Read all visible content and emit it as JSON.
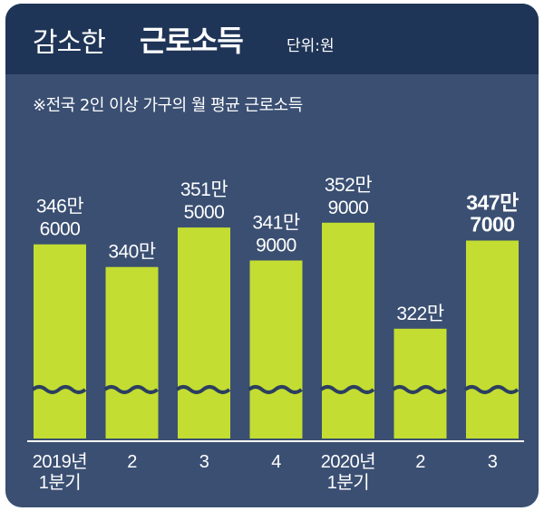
{
  "header": {
    "title_light": "감소한",
    "title_bold": "근로소득",
    "unit": "단위:원"
  },
  "subtitle": "※전국 2인 이상 가구의 월 평균 근로소득",
  "colors": {
    "header_bg": "#1f3557",
    "panel_bg": "#3a4f72",
    "bar": "#c3dd32",
    "text": "#ffffff"
  },
  "chart_data": {
    "type": "bar",
    "title": "감소한 근로소득",
    "subtitle": "※전국 2인 이상 가구의 월 평균 근로소득",
    "unit": "단위:원",
    "axis_break": true,
    "categories": [
      [
        "2019년",
        "1분기"
      ],
      [
        "2"
      ],
      [
        "3"
      ],
      [
        "4"
      ],
      [
        "2020년",
        "1분기"
      ],
      [
        "2"
      ],
      [
        "3"
      ]
    ],
    "values": [
      3466000,
      3400000,
      3515000,
      3419000,
      3529000,
      3220000,
      3477000
    ],
    "value_labels": [
      [
        "346만",
        "6000"
      ],
      [
        "340만"
      ],
      [
        "351만",
        "5000"
      ],
      [
        "341만",
        "9000"
      ],
      [
        "352만",
        "9000"
      ],
      [
        "322만"
      ],
      [
        "347만",
        "7000"
      ]
    ],
    "highlight_index": 6,
    "ylim": [
      2900000,
      3650000
    ]
  }
}
